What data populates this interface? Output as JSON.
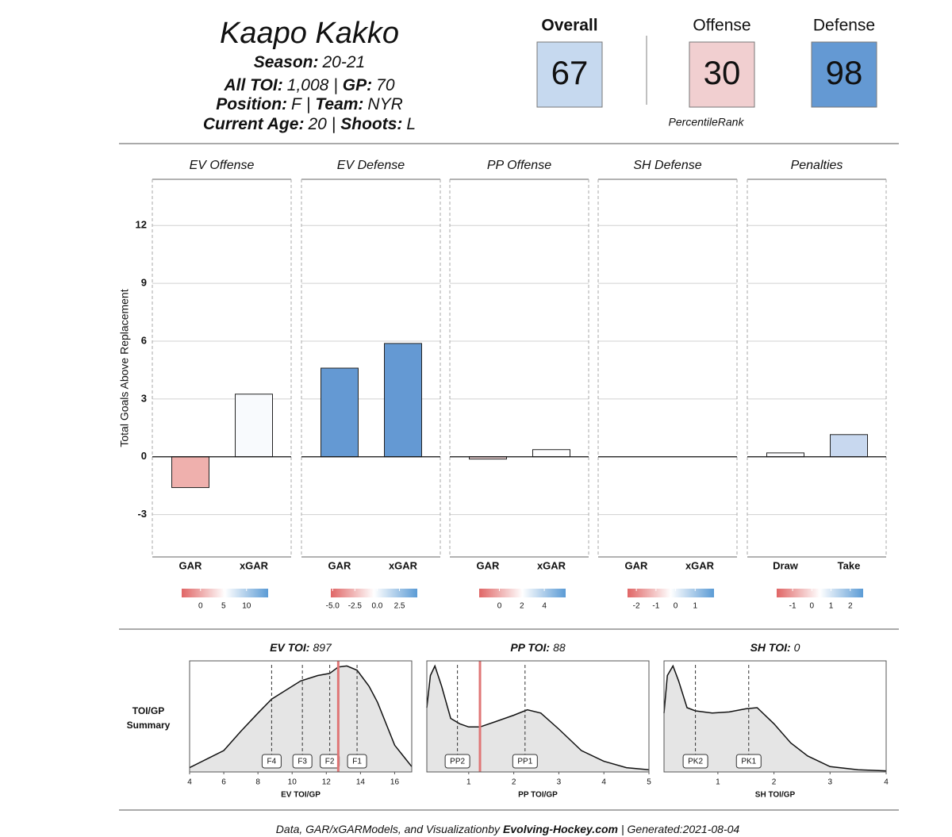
{
  "header": {
    "name": "Kaapo Kakko",
    "separator": "|",
    "lines": [
      [
        {
          "label": "Season:",
          "value": "20-21"
        }
      ],
      [
        {
          "label": "All TOI:",
          "value": "1,008"
        },
        {
          "label": "GP:",
          "value": 70
        }
      ],
      [
        {
          "label": "Position:",
          "value": "F"
        },
        {
          "label": "Team:",
          "value": "NYR"
        }
      ],
      [
        {
          "label": "Current Age:",
          "value": 20
        },
        {
          "label": "Shoots:",
          "value": "L"
        }
      ]
    ]
  },
  "ranks": {
    "note": "PercentileRank",
    "items": [
      {
        "label": "Overall",
        "value": 67,
        "color": "#c6d9ef"
      },
      {
        "label": "Offense",
        "value": 30,
        "color": "#f1cfd0"
      },
      {
        "label": "Defense",
        "value": 98,
        "color": "#6499d3"
      }
    ]
  },
  "chart_data": [
    {
      "type": "bar",
      "ylabel": "Total Goals Above Replacement",
      "ylim": [
        -5.2,
        14.4
      ],
      "yticks": [
        -3,
        0,
        3,
        6,
        9,
        12
      ],
      "grid": true,
      "panels": [
        {
          "title": "EV Offense",
          "categories": [
            "GAR",
            "xGAR"
          ],
          "values": [
            -1.6,
            3.25
          ],
          "colors": [
            "#efb0ad",
            "#f8fafd"
          ],
          "colorbar": {
            "xlim": [
              -4.1,
              14.7
            ],
            "xticks": [
              0,
              5,
              10
            ],
            "colors": [
              "#e06666",
              "#ffffff",
              "#5b9bd5"
            ]
          }
        },
        {
          "title": "EV Defense",
          "categories": [
            "GAR",
            "xGAR"
          ],
          "values": [
            4.6,
            5.88
          ],
          "colors": [
            "#6499d3",
            "#6499d3"
          ],
          "colorbar": {
            "xlim": [
              -5.2,
              4.5
            ],
            "xticks": [
              {
                "value": -5,
                "label": "-5.0"
              },
              -2.5,
              {
                "value": 0,
                "label": "0.0"
              },
              2.5
            ],
            "colors": [
              "#e06666",
              "#ffffff",
              "#5b9bd5"
            ]
          }
        },
        {
          "title": "PP Offense",
          "categories": [
            "GAR",
            "xGAR"
          ],
          "values": [
            -0.12,
            0.37
          ],
          "colors": [
            "#f3d9da",
            "#fdfdfe"
          ],
          "colorbar": {
            "xlim": [
              -1.8,
              5.9
            ],
            "xticks": [
              0,
              2,
              4
            ],
            "colors": [
              "#e06666",
              "#ffffff",
              "#5b9bd5"
            ]
          }
        },
        {
          "title": "SH Defense",
          "categories": [
            "GAR",
            "xGAR"
          ],
          "values": [
            0,
            0
          ],
          "colors": [
            "#ffffff",
            "#ffffff"
          ],
          "colorbar": {
            "xlim": [
              -2.45,
              1.96
            ],
            "xticks": [
              -2,
              -1,
              0,
              1
            ],
            "colors": [
              "#e06666",
              "#ffffff",
              "#5b9bd5"
            ]
          }
        },
        {
          "title": "Penalties",
          "categories": [
            "Draw",
            "Take"
          ],
          "values": [
            0.2,
            1.15
          ],
          "colors": [
            "#fbfbfd",
            "#c8d8ef"
          ],
          "colorbar": {
            "xlim": [
              -1.83,
              2.67
            ],
            "xticks": [
              -1,
              0,
              1,
              2
            ],
            "colors": [
              "#e06666",
              "#ffffff",
              "#5b9bd5"
            ]
          }
        }
      ]
    },
    {
      "type": "density",
      "side_label": [
        "TOI/GP",
        "Summary"
      ],
      "title_label": "EV TOI:",
      "title_value": 897,
      "xlabel": "EV TOI/GP",
      "xlim": [
        4,
        17
      ],
      "xticks": [
        4,
        6,
        8,
        10,
        12,
        14,
        16
      ],
      "ylim": [
        0,
        1
      ],
      "x": [
        4,
        5,
        6,
        7,
        8,
        8.8,
        9.5,
        10.5,
        11.5,
        12.2,
        12.7,
        13.2,
        13.8,
        14.5,
        15,
        16,
        17
      ],
      "y": [
        0.04,
        0.12,
        0.2,
        0.38,
        0.55,
        0.68,
        0.75,
        0.85,
        0.9,
        0.92,
        0.98,
        0.99,
        0.95,
        0.8,
        0.65,
        0.25,
        0.05
      ],
      "markers": [
        {
          "label": "F4",
          "value": 8.8
        },
        {
          "label": "F3",
          "value": 10.6
        },
        {
          "label": "F2",
          "value": 12.2
        },
        {
          "label": "F1",
          "value": 13.8
        }
      ],
      "player": 12.7,
      "player_color": "#e07777"
    },
    {
      "type": "density",
      "title_label": "PP TOI:",
      "title_value": 88,
      "xlabel": "PP TOI/GP",
      "xlim": [
        0.07,
        5
      ],
      "xticks": [
        1,
        2,
        3,
        4,
        5
      ],
      "ylim": [
        0,
        1
      ],
      "x": [
        0.07,
        0.15,
        0.25,
        0.4,
        0.6,
        0.8,
        1.0,
        1.25,
        1.6,
        2.0,
        2.3,
        2.6,
        3.0,
        3.5,
        4,
        4.5,
        5
      ],
      "y": [
        0.6,
        0.9,
        0.99,
        0.8,
        0.5,
        0.45,
        0.42,
        0.42,
        0.47,
        0.53,
        0.58,
        0.55,
        0.4,
        0.2,
        0.1,
        0.04,
        0.02
      ],
      "markers": [
        {
          "label": "PP2",
          "value": 0.75
        },
        {
          "label": "PP1",
          "value": 2.25
        }
      ],
      "player": 1.25,
      "player_color": "#e07777"
    },
    {
      "type": "density",
      "title_label": "SH TOI:",
      "title_value": 0,
      "xlabel": "SH TOI/GP",
      "xlim": [
        0.04,
        4
      ],
      "xticks": [
        1,
        2,
        3,
        4
      ],
      "ylim": [
        0,
        1
      ],
      "x": [
        0.04,
        0.1,
        0.2,
        0.3,
        0.45,
        0.6,
        0.9,
        1.2,
        1.5,
        1.7,
        2.0,
        2.3,
        2.6,
        3,
        3.5,
        4
      ],
      "y": [
        0.55,
        0.9,
        0.99,
        0.85,
        0.6,
        0.57,
        0.55,
        0.56,
        0.59,
        0.6,
        0.45,
        0.27,
        0.15,
        0.05,
        0.02,
        0.01
      ],
      "markers": [
        {
          "label": "PK2",
          "value": 0.6
        },
        {
          "label": "PK1",
          "value": 1.55
        }
      ]
    }
  ],
  "footer": {
    "text": "Data, GAR/xGARModels, and Visualizationby",
    "site": "Evolving-Hockey.com",
    "generated": "| Generated:2021-08-04"
  }
}
